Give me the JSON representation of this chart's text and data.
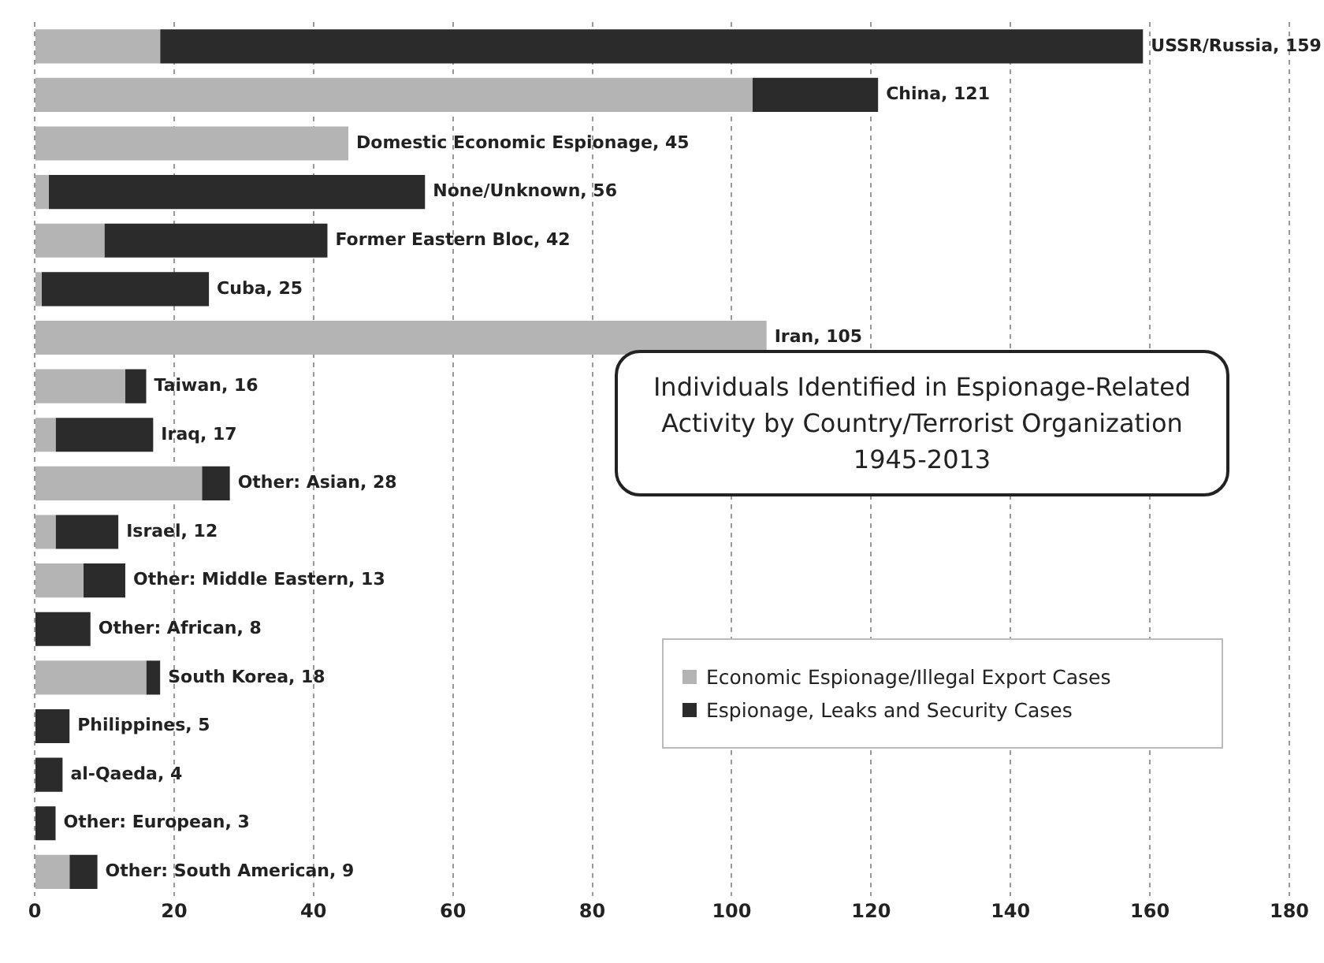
{
  "chart_data": {
    "type": "bar",
    "orientation": "horizontal",
    "stacked": true,
    "title": "Individuals Identified in Espionage-Related Activity by Country/Terrorist Organization 1945-2013",
    "categories": [
      "USSR/Russia, 159",
      "China, 121",
      "Domestic Economic Espionage, 45",
      "None/Unknown, 56",
      "Former Eastern Bloc, 42",
      "Cuba, 25",
      "Iran, 105",
      "Taiwan, 16",
      "Iraq, 17",
      "Other: Asian, 28",
      "Israel, 12",
      "Other: Middle Eastern, 13",
      "Other: African, 8",
      "South Korea, 18",
      "Philippines, 5",
      "al-Qaeda, 4",
      "Other: European, 3",
      "Other: South American, 9"
    ],
    "series": [
      {
        "name": "Economic Espionage/Illegal Export Cases",
        "color": "#b4b4b4",
        "values": [
          18,
          103,
          45,
          2,
          10,
          1,
          105,
          13,
          3,
          24,
          3,
          7,
          0,
          16,
          0,
          0,
          0,
          5
        ]
      },
      {
        "name": "Espionage, Leaks and Security Cases",
        "color": "#2b2b2b",
        "values": [
          141,
          18,
          0,
          54,
          32,
          24,
          0,
          3,
          14,
          4,
          9,
          6,
          8,
          2,
          5,
          4,
          3,
          4
        ]
      }
    ],
    "xlim": [
      0,
      180
    ],
    "xticks": [
      0,
      20,
      40,
      60,
      80,
      100,
      120,
      140,
      160,
      180
    ],
    "grid": "x",
    "legend": "right",
    "tick_labels": "x"
  }
}
